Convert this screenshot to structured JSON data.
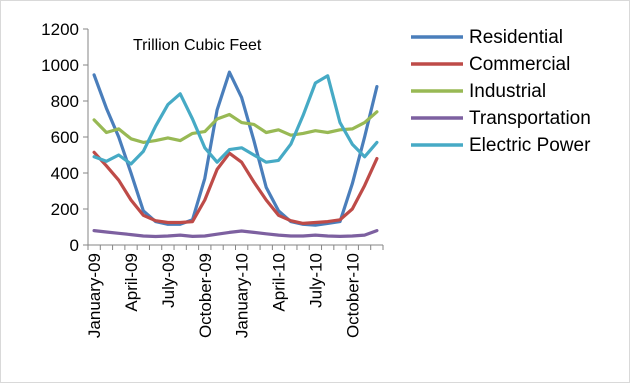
{
  "chart_data": {
    "type": "line",
    "annotation": "Trillion  Cubic Feet",
    "x": [
      "2009-01",
      "2009-02",
      "2009-03",
      "2009-04",
      "2009-05",
      "2009-06",
      "2009-07",
      "2009-08",
      "2009-09",
      "2009-10",
      "2009-11",
      "2009-12",
      "2010-01",
      "2010-02",
      "2010-03",
      "2010-04",
      "2010-05",
      "2010-06",
      "2010-07",
      "2010-08",
      "2010-09",
      "2010-10",
      "2010-11",
      "2010-12"
    ],
    "x_tick_labels": [
      {
        "index": 0,
        "label": "January-09"
      },
      {
        "index": 3,
        "label": "April-09"
      },
      {
        "index": 6,
        "label": "July-09"
      },
      {
        "index": 9,
        "label": "October-09"
      },
      {
        "index": 12,
        "label": "January-10"
      },
      {
        "index": 15,
        "label": "April-10"
      },
      {
        "index": 18,
        "label": "July-10"
      },
      {
        "index": 21,
        "label": "October-10"
      }
    ],
    "ylim": [
      0,
      1200
    ],
    "yticks": [
      0,
      200,
      400,
      600,
      800,
      1000,
      1200
    ],
    "grid": false,
    "legend_position": "right",
    "series": [
      {
        "name": "Residential",
        "color": "#4a7ebb",
        "values": [
          945,
          760,
          600,
          400,
          190,
          130,
          115,
          115,
          140,
          370,
          750,
          960,
          820,
          580,
          320,
          190,
          130,
          115,
          110,
          120,
          130,
          340,
          600,
          880
        ]
      },
      {
        "name": "Commercial",
        "color": "#be4b48",
        "values": [
          515,
          440,
          360,
          250,
          165,
          135,
          125,
          125,
          130,
          250,
          420,
          510,
          460,
          350,
          250,
          165,
          135,
          120,
          125,
          130,
          140,
          200,
          330,
          480
        ]
      },
      {
        "name": "Industrial",
        "color": "#98b954",
        "values": [
          695,
          625,
          645,
          590,
          570,
          580,
          595,
          580,
          620,
          630,
          700,
          725,
          680,
          670,
          625,
          640,
          610,
          620,
          635,
          625,
          640,
          645,
          680,
          740
        ]
      },
      {
        "name": "Transportation",
        "color": "#7d60a0",
        "values": [
          80,
          72,
          65,
          58,
          50,
          47,
          50,
          55,
          48,
          50,
          60,
          70,
          78,
          70,
          62,
          55,
          50,
          50,
          55,
          50,
          48,
          50,
          55,
          80
        ]
      },
      {
        "name": "Electric Power",
        "color": "#46aac5",
        "values": [
          490,
          465,
          500,
          450,
          520,
          660,
          780,
          840,
          700,
          540,
          460,
          530,
          540,
          500,
          460,
          470,
          560,
          720,
          900,
          940,
          680,
          560,
          490,
          570
        ]
      }
    ]
  }
}
